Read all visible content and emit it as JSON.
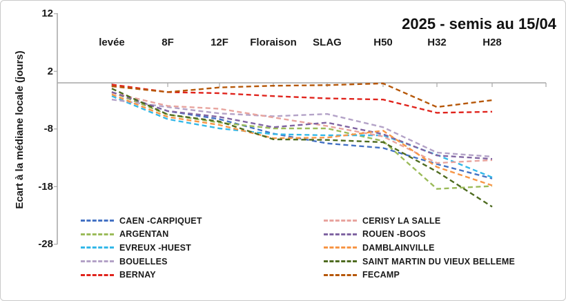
{
  "chart_data": {
    "type": "line",
    "title": "2025 - semis au 15/04",
    "ylabel": "Ecart à la médiane locale (jours)",
    "xlabel": "",
    "categories": [
      "levée",
      "8F",
      "12F",
      "Floraison",
      "SLAG",
      "H50",
      "H32",
      "H28"
    ],
    "y_ticks": [
      "12",
      "2",
      "-8",
      "-18",
      "-28"
    ],
    "ylim": [
      -28,
      12
    ],
    "grid": false,
    "line_style": "dashed",
    "legend_position": "bottom-two-columns",
    "axis_color": "#a6a6a6",
    "series": [
      {
        "name": "CAEN -CARPIQUET",
        "color": "#4472c4",
        "values": [
          -1.6,
          -4.9,
          -6.3,
          -8.8,
          -10.5,
          -11.3,
          -14.1,
          -16.6
        ]
      },
      {
        "name": "ARGENTAN",
        "color": "#9bbb59",
        "values": [
          -1.6,
          -5.5,
          -6.9,
          -7.9,
          -7.9,
          -10.1,
          -18.4,
          -17.9
        ]
      },
      {
        "name": "EVREUX -HUEST",
        "color": "#33b8e8",
        "values": [
          -2.3,
          -6.3,
          -7.9,
          -8.9,
          -9.1,
          -9.1,
          -12.5,
          -16.4
        ]
      },
      {
        "name": "BOUELLES",
        "color": "#b3a2c7",
        "values": [
          -2.9,
          -4.2,
          -5.3,
          -5.8,
          -5.4,
          -7.7,
          -12.1,
          -12.8
        ]
      },
      {
        "name": "BERNAY",
        "color": "#e0231c",
        "values": [
          -0.3,
          -1.6,
          -1.8,
          -2.3,
          -2.7,
          -2.9,
          -5.2,
          -5.0
        ]
      },
      {
        "name": "CERISY LA SALLE",
        "color": "#e8a49e",
        "values": [
          -1.7,
          -4.0,
          -4.5,
          -6.0,
          -7.5,
          -9.3,
          -13.9,
          -13.4
        ]
      },
      {
        "name": "ROUEN -BOOS",
        "color": "#8064a2",
        "values": [
          -1.6,
          -4.9,
          -5.9,
          -7.7,
          -6.9,
          -8.9,
          -12.6,
          -13.2
        ]
      },
      {
        "name": "DAMBLAINVILLE",
        "color": "#f79646",
        "values": [
          -2.0,
          -5.9,
          -7.3,
          -9.6,
          -9.5,
          -8.3,
          -14.6,
          -17.8
        ]
      },
      {
        "name": "SAINT MARTIN DU VIEUX BELLEME",
        "color": "#4e6b20",
        "values": [
          -1.0,
          -5.5,
          -6.7,
          -9.8,
          -9.9,
          -10.3,
          -15.4,
          -21.5
        ]
      },
      {
        "name": "FECAMP",
        "color": "#b65708",
        "values": [
          -0.6,
          -1.6,
          -0.8,
          -0.5,
          -0.4,
          -0.1,
          -4.2,
          -3.0
        ]
      }
    ]
  }
}
